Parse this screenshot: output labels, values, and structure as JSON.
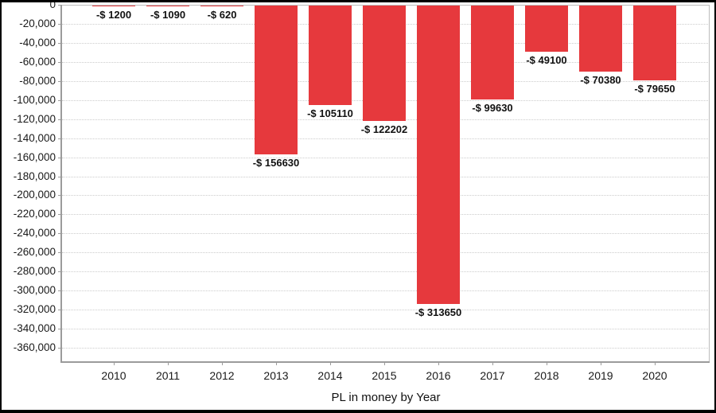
{
  "window": {
    "background": "#ffffff",
    "border_color": "#000000"
  },
  "chart_data": {
    "type": "bar",
    "title": "PL in money by Year",
    "xlabel": "PL in money by Year",
    "ylabel": "",
    "categories": [
      "2010",
      "2011",
      "2012",
      "2013",
      "2014",
      "2015",
      "2016",
      "2017",
      "2018",
      "2019",
      "2020"
    ],
    "values": [
      -1200,
      -1090,
      -620,
      -156630,
      -105110,
      -122202,
      -313650,
      -99630,
      -49100,
      -70380,
      -79650
    ],
    "bar_labels": [
      "-$ 1200",
      "-$ 1090",
      "-$ 620",
      "-$ 156630",
      "-$ 105110",
      "-$ 122202",
      "-$ 313650",
      "-$ 99630",
      "-$ 49100",
      "-$ 70380",
      "-$ 79650"
    ],
    "ylim": [
      -375000,
      0
    ],
    "ytick_values": [
      0,
      -20000,
      -40000,
      -60000,
      -80000,
      -100000,
      -120000,
      -140000,
      -160000,
      -180000,
      -200000,
      -220000,
      -240000,
      -260000,
      -280000,
      -300000,
      -320000,
      -340000,
      -360000
    ],
    "ytick_labels": [
      "0",
      "-20,000",
      "-40,000",
      "-60,000",
      "-80,000",
      "-100,000",
      "-120,000",
      "-140,000",
      "-160,000",
      "-180,000",
      "-200,000",
      "-220,000",
      "-240,000",
      "-260,000",
      "-280,000",
      "-300,000",
      "-320,000",
      "-340,000",
      "-360,000"
    ],
    "grid": true,
    "legend": "none",
    "colors": {
      "bar": "#e6393d",
      "gridline": "#cccccc",
      "axis": "#9b9b9b",
      "plot_border": "#bdbdbd",
      "label": "#111111"
    }
  }
}
